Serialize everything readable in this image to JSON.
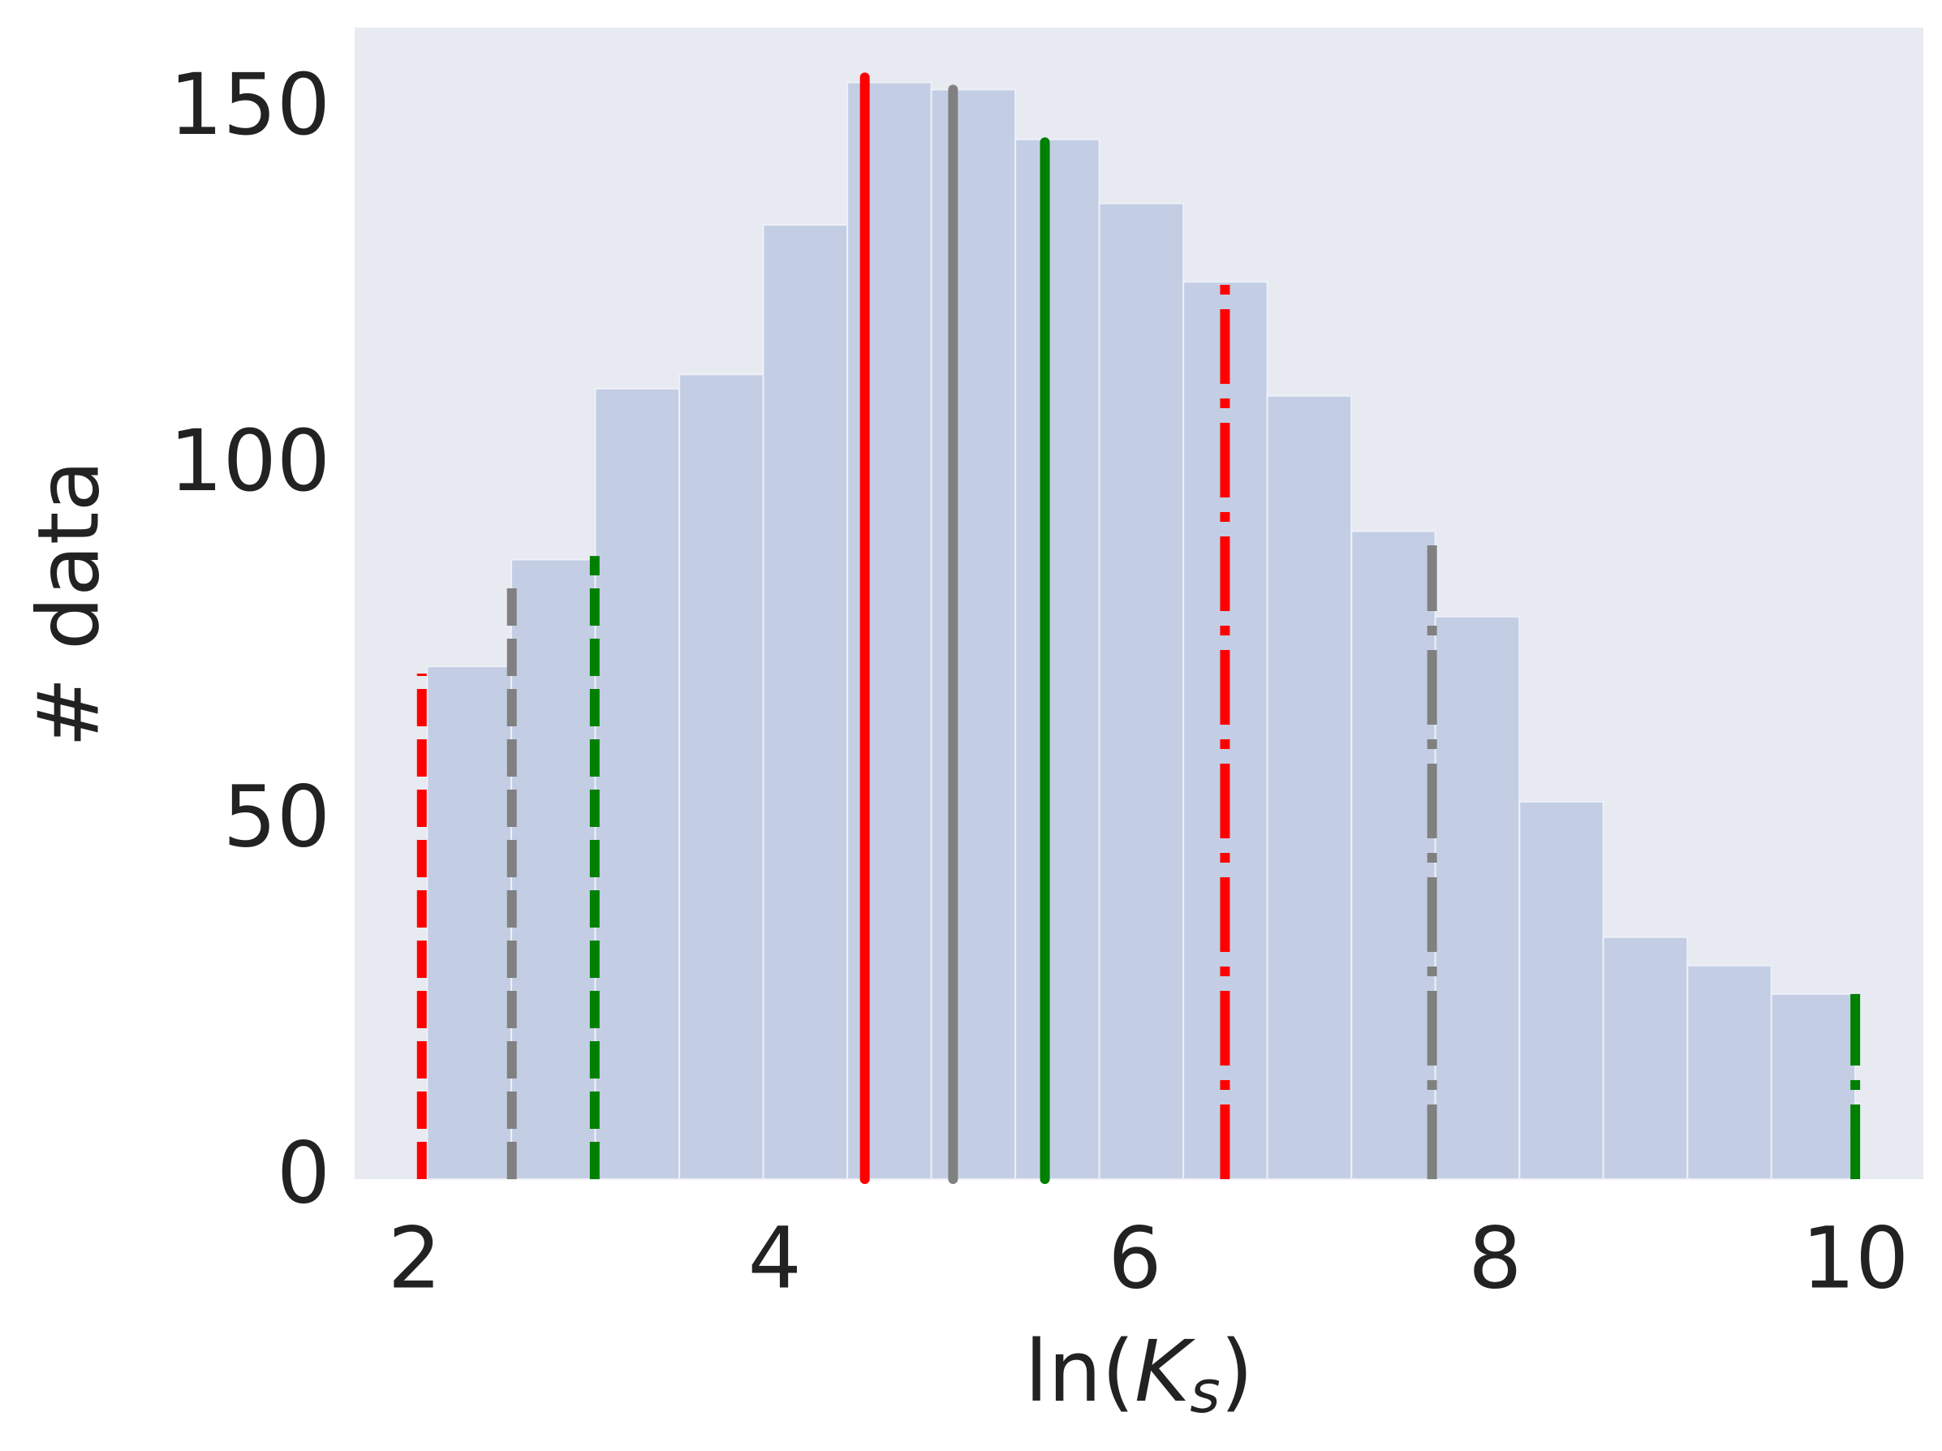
{
  "chart_data": {
    "type": "histogram",
    "xlabel": "ln(Ks)",
    "ylabel": "# data",
    "bins": [
      2.07,
      2.537,
      3.003,
      3.47,
      3.936,
      4.403,
      4.869,
      5.336,
      5.802,
      6.269,
      6.735,
      7.202,
      7.668,
      8.135,
      8.601,
      9.068,
      9.534,
      10.0
    ],
    "counts": [
      72,
      87,
      111,
      113,
      134,
      154,
      153,
      146,
      137,
      126,
      110,
      91,
      79,
      53,
      34,
      30,
      26
    ],
    "color": "#c3cee5",
    "background": "#e8eaf2",
    "lines": [
      {
        "x": 2.04,
        "ymax": 71,
        "color": "#ff0000",
        "style": "dashed"
      },
      {
        "x": 2.54,
        "ymax": 84,
        "color": "#808080",
        "style": "dashed"
      },
      {
        "x": 3.0,
        "ymax": 87.5,
        "color": "#008000",
        "style": "dashed"
      },
      {
        "x": 4.5,
        "ymax": 154.7,
        "color": "#ff0000",
        "style": "solid"
      },
      {
        "x": 4.99,
        "ymax": 153,
        "color": "#808080",
        "style": "solid"
      },
      {
        "x": 5.5,
        "ymax": 145.6,
        "color": "#008000",
        "style": "solid"
      },
      {
        "x": 6.5,
        "ymax": 126,
        "color": "#ff0000",
        "style": "dashdot"
      },
      {
        "x": 7.65,
        "ymax": 89,
        "color": "#808080",
        "style": "dashdot"
      },
      {
        "x": 10.0,
        "ymax": 26,
        "color": "#008000",
        "style": "dashdot"
      }
    ],
    "xlim": [
      1.667,
      10.378
    ],
    "ylim": [
      0,
      161.7
    ],
    "xticks": [
      2,
      4,
      6,
      8,
      10
    ],
    "yticks": [
      0,
      50,
      100,
      150
    ],
    "grid": false
  }
}
